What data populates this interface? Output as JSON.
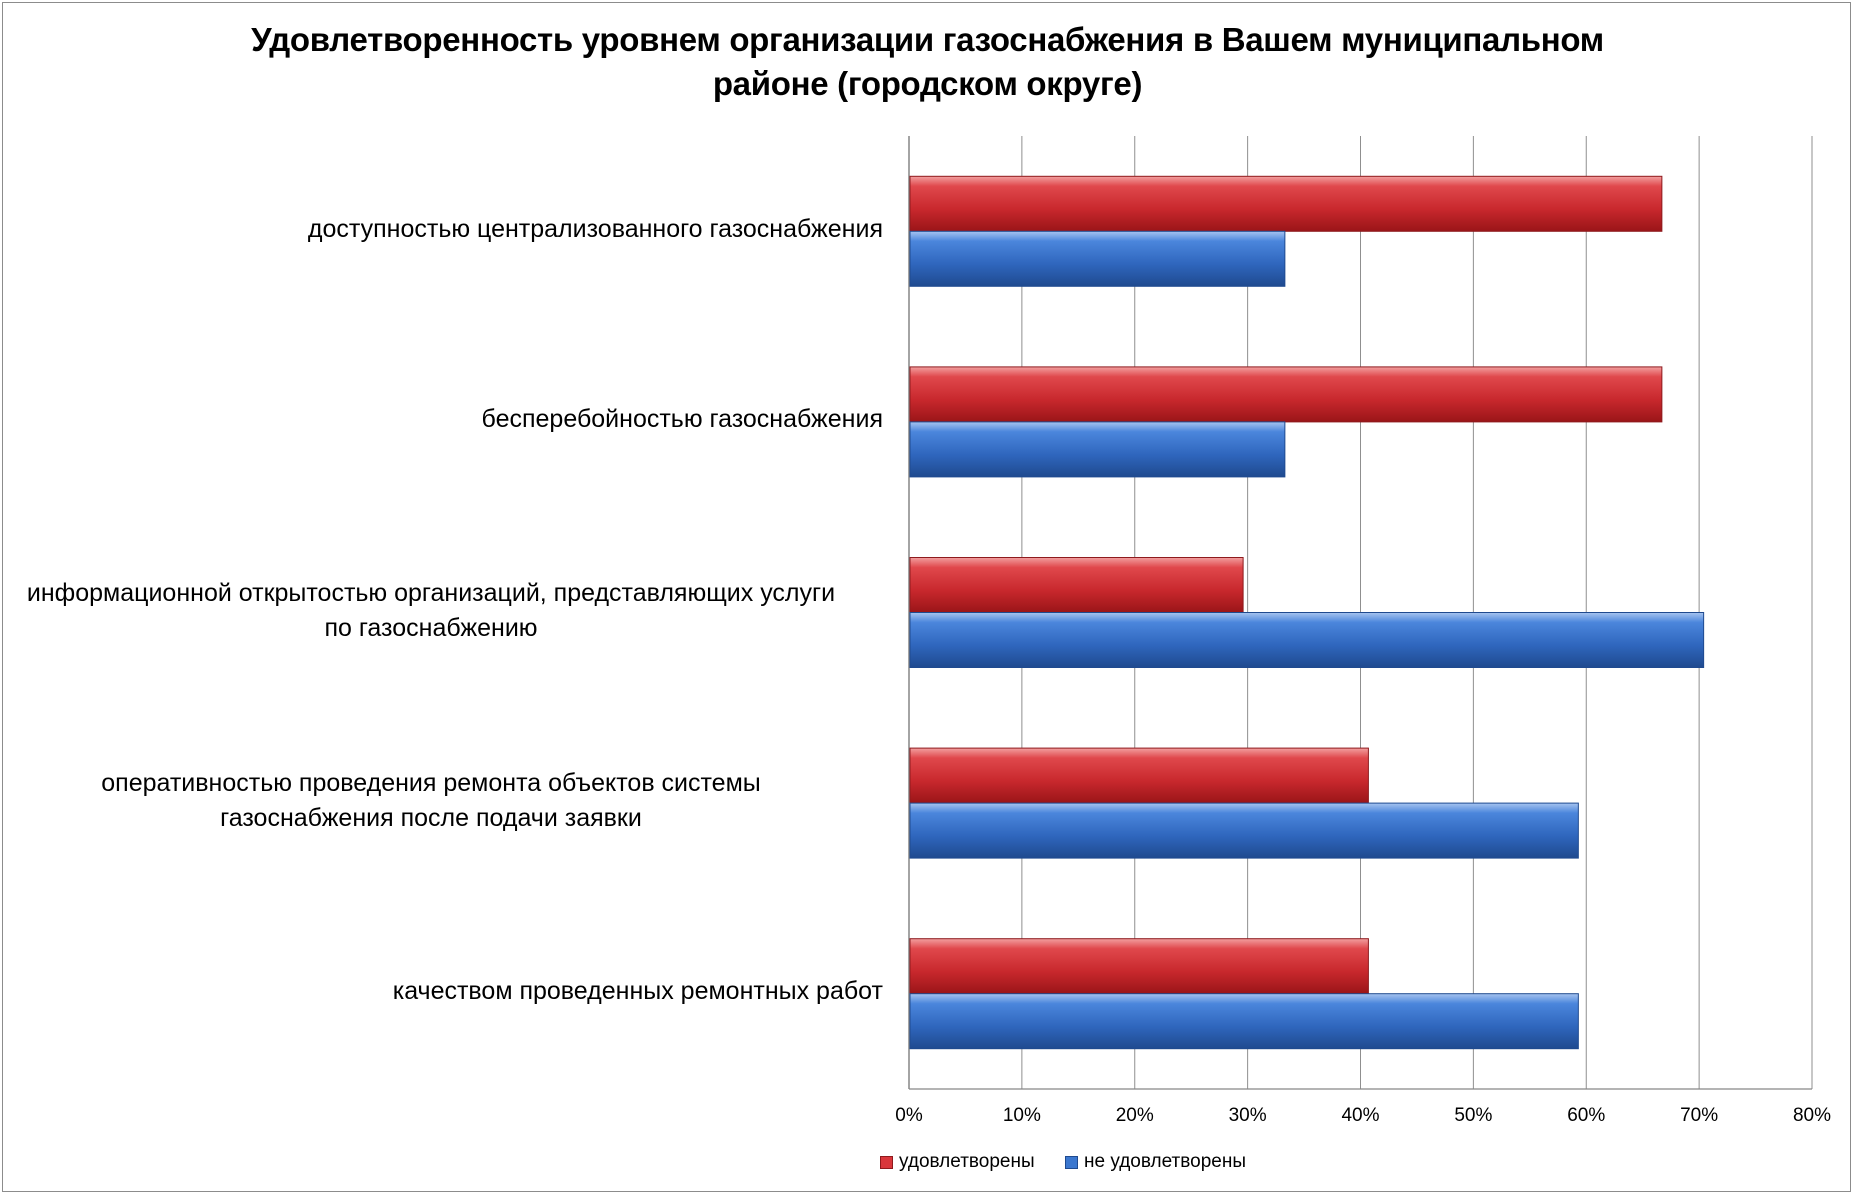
{
  "chart_data": {
    "type": "bar",
    "orientation": "horizontal",
    "title": "Удовлетворенность уровнем организации газоснабжения в Вашем муниципальном районе (городском округе)",
    "title_lines": [
      "Удовлетворенность уровнем организации газоснабжения в Вашем муниципальном",
      "районе (городском округе)"
    ],
    "categories": [
      "доступностью централизованного газоснабжения",
      "бесперебойностью  газоснабжения",
      "информационной открытостью организаций, представляющих услуги по газоснабжению",
      "оперативностью проведения ремонта объектов системы газоснабжения после подачи заявки",
      "качеством проведенных ремонтных работ"
    ],
    "category_lines": [
      [
        "доступностью централизованного газоснабжения"
      ],
      [
        "бесперебойностью  газоснабжения"
      ],
      [
        "информационной открытостью организаций, представляющих услуги",
        "по газоснабжению"
      ],
      [
        "оперативностью проведения ремонта объектов системы",
        "газоснабжения после подачи заявки"
      ],
      [
        "качеством проведенных ремонтных работ"
      ]
    ],
    "series": [
      {
        "name": "удовлетворены",
        "color": "#d9363b",
        "values": [
          0.667,
          0.667,
          0.296,
          0.407,
          0.407
        ]
      },
      {
        "name": "не удовлетворены",
        "color": "#3b77cf",
        "values": [
          0.333,
          0.333,
          0.704,
          0.593,
          0.593
        ]
      }
    ],
    "xlim": [
      0,
      0.8
    ],
    "xticks": [
      "0%",
      "10%",
      "20%",
      "30%",
      "40%",
      "50%",
      "60%",
      "70%",
      "80%"
    ],
    "xlabel": "",
    "ylabel": "",
    "grid": true,
    "legend_position": "bottom"
  }
}
